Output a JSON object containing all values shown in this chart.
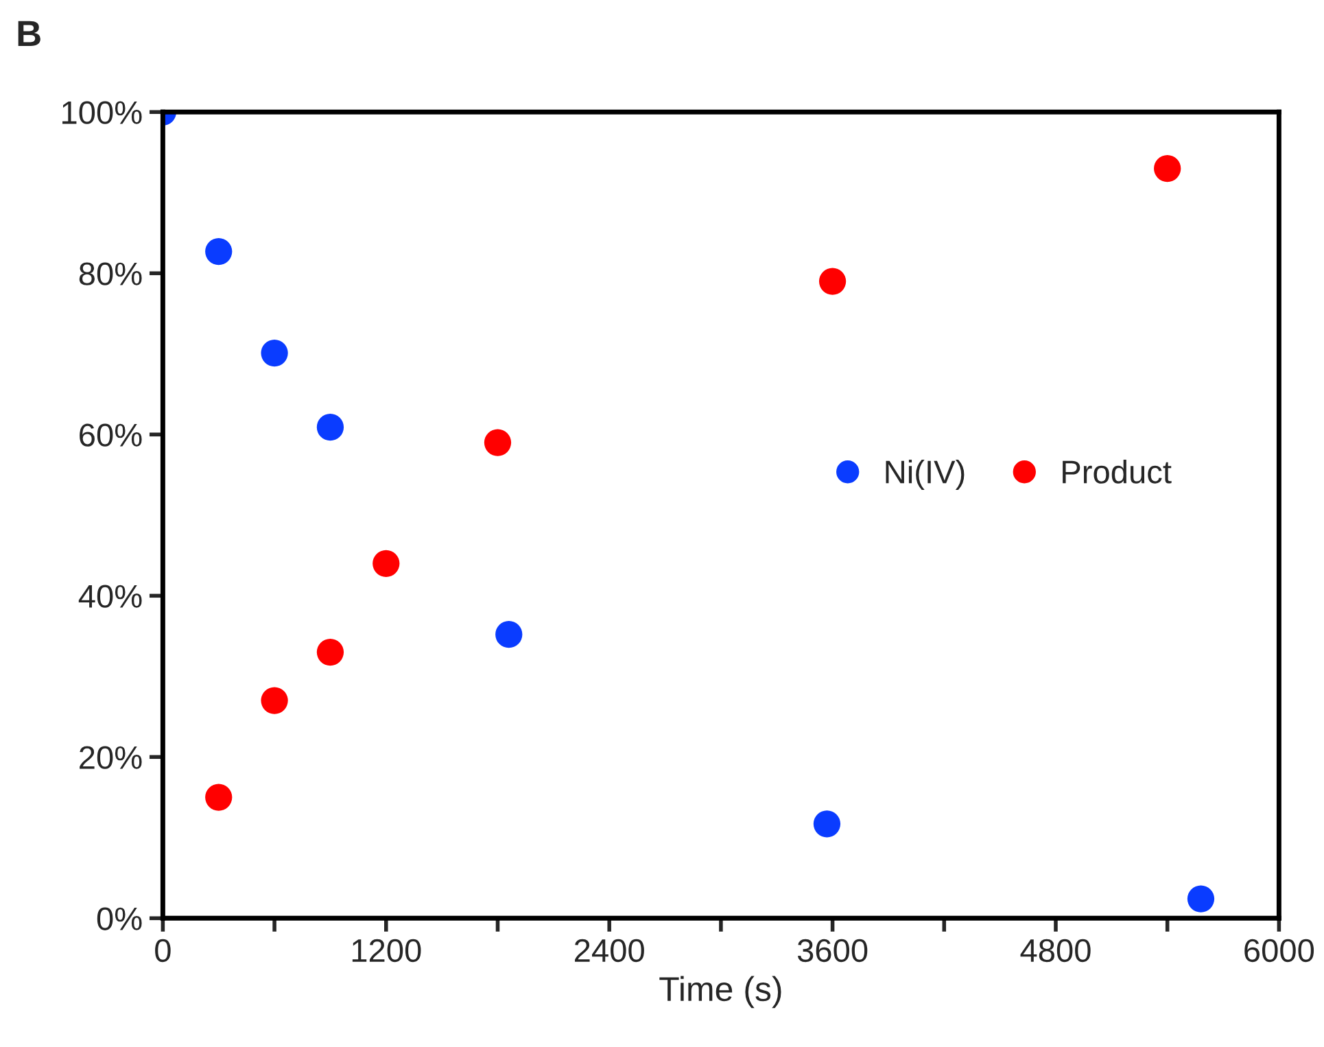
{
  "chart_data": {
    "type": "scatter",
    "title": "B",
    "xlabel": "Time (s)",
    "xlim": [
      0,
      6000
    ],
    "ylim": [
      0,
      100
    ],
    "xticks": [
      0,
      {
        "value": 600,
        "label": null
      },
      1200,
      {
        "value": 1800,
        "label": null
      },
      2400,
      {
        "value": 3000,
        "label": null
      },
      3600,
      {
        "value": 4200,
        "label": null
      },
      4800,
      {
        "value": 5400,
        "label": null
      },
      6000
    ],
    "yticks": [
      {
        "value": 0,
        "label": "0%"
      },
      {
        "value": 20,
        "label": "20%"
      },
      {
        "value": 40,
        "label": "40%"
      },
      {
        "value": 60,
        "label": "60%"
      },
      {
        "value": 80,
        "label": "80%"
      },
      {
        "value": 100,
        "label": "100%"
      }
    ],
    "series": [
      {
        "name": "Ni(IV)",
        "color": "#0a3cff",
        "x": [
          0,
          300,
          600,
          900,
          1860,
          3570,
          5580
        ],
        "values": [
          100,
          82.7,
          70.1,
          60.9,
          35.2,
          11.7,
          2.4
        ]
      },
      {
        "name": "Product",
        "color": "#ff0000",
        "x": [
          300,
          600,
          900,
          1200,
          1800,
          3600,
          5400
        ],
        "values": [
          15,
          27,
          33,
          44,
          59,
          79,
          93
        ]
      }
    ],
    "marker": "circle",
    "legend": "right",
    "grid": false
  }
}
